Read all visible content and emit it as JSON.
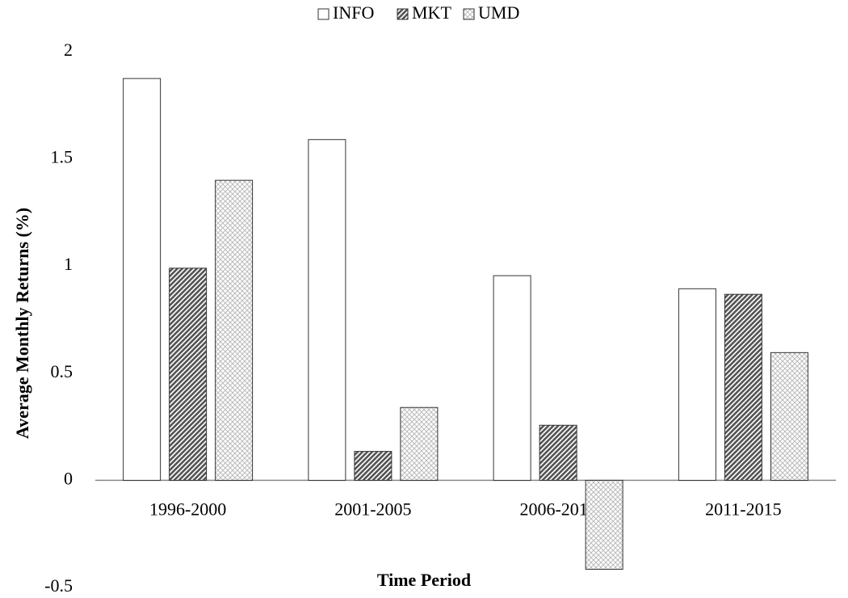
{
  "chart_data": {
    "type": "bar",
    "y_label": "Average Monthly Returns (%)",
    "x_label": "Time Period",
    "categories": [
      "1996-2000",
      "2001-2005",
      "2006-2010",
      "2011-2015"
    ],
    "series": [
      {
        "name": "INFO",
        "color": "#ffffff",
        "values": [
          1.875,
          1.59,
          0.955,
          0.894
        ]
      },
      {
        "name": "MKT",
        "color": "#555555",
        "values": [
          0.99,
          0.135,
          0.257,
          0.868
        ]
      },
      {
        "name": "UMD",
        "color": "#bbbbbb",
        "values": [
          1.4,
          0.34,
          -0.415,
          0.596
        ]
      }
    ],
    "ylim": [
      -0.5,
      2
    ],
    "yticks": [
      -0.5,
      0,
      0.5,
      1,
      1.5,
      2
    ],
    "legend": "top"
  }
}
